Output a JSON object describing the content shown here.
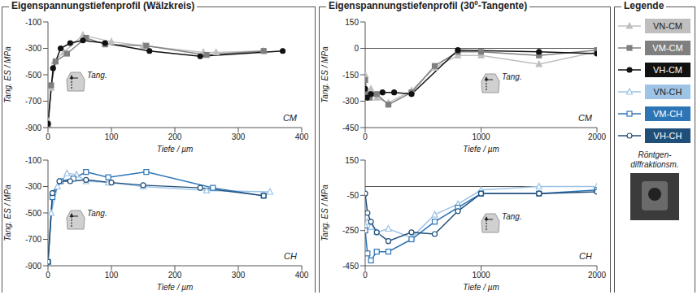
{
  "figure": {
    "group_titles": [
      "Eigenspannungstiefenprofil (Wälzkreis)",
      "Eigenspannungstiefenprofil (30º-Tangente)"
    ],
    "legend_title": "Legende",
    "legend": "right",
    "image_caption": "Röntgen-diffraktionsm."
  },
  "chart_data": [
    {
      "type": "line",
      "x_label": "Tiefe / µm",
      "y_label": "Tang. ES / MPa",
      "annotations": [
        "Tang.",
        "CM"
      ],
      "xlim": [
        0,
        400
      ],
      "xticks": [
        0,
        100,
        200,
        300,
        400
      ],
      "ylim": [
        -900,
        -100
      ],
      "yticks": [
        -100,
        -300,
        -500,
        -700,
        -900
      ],
      "series": [
        {
          "name": "VN-CM",
          "color": "#bfbfbf",
          "marker": "triangle",
          "x": [
            0,
            5,
            10,
            25,
            55,
            100,
            150,
            245,
            265,
            340
          ],
          "values": [
            -850,
            -600,
            -400,
            -330,
            -200,
            -250,
            -280,
            -330,
            -330,
            -320
          ]
        },
        {
          "name": "VM-CM",
          "color": "#7f7f7f",
          "marker": "square",
          "x": [
            0,
            5,
            12,
            30,
            60,
            90,
            155,
            250,
            340
          ],
          "values": [
            -900,
            -580,
            -400,
            -340,
            -220,
            -270,
            -280,
            -350,
            -320
          ]
        },
        {
          "name": "VH-CM",
          "color": "#111111",
          "marker": "circle",
          "x": [
            0,
            8,
            20,
            35,
            55,
            90,
            160,
            240,
            370
          ],
          "values": [
            -870,
            -450,
            -300,
            -260,
            -240,
            -260,
            -320,
            -360,
            -320
          ]
        }
      ]
    },
    {
      "type": "line",
      "x_label": "Tiefe / µm",
      "y_label": "Tang. ES / MPa",
      "annotations": [
        "Tang.",
        "CH"
      ],
      "xlim": [
        0,
        400
      ],
      "xticks": [
        0,
        100,
        200,
        300,
        400
      ],
      "ylim": [
        -900,
        -100
      ],
      "yticks": [
        -100,
        -300,
        -500,
        -700,
        -900
      ],
      "series": [
        {
          "name": "VN-CH",
          "color": "#9dc3e6",
          "marker": "triangle-open",
          "x": [
            0,
            5,
            15,
            30,
            45,
            60,
            95,
            150,
            250,
            350
          ],
          "values": [
            -870,
            -500,
            -300,
            -200,
            -210,
            -260,
            -270,
            -300,
            -330,
            -340
          ]
        },
        {
          "name": "VM-CH",
          "color": "#2e75b6",
          "marker": "square-open",
          "x": [
            0,
            7,
            20,
            40,
            60,
            95,
            155,
            260,
            340
          ],
          "values": [
            -870,
            -380,
            -260,
            -240,
            -190,
            -230,
            -190,
            -310,
            -370
          ]
        },
        {
          "name": "VH-CH",
          "color": "#1f4e79",
          "marker": "circle-open",
          "x": [
            0,
            7,
            18,
            35,
            60,
            100,
            150,
            240,
            340
          ],
          "values": [
            -870,
            -350,
            -260,
            -260,
            -250,
            -270,
            -290,
            -310,
            -370
          ]
        }
      ]
    },
    {
      "type": "line",
      "x_label": "Tiefe / µm",
      "y_label": "Tang. ES / MPa",
      "annotations": [
        "Tang.",
        "CM"
      ],
      "xlim": [
        0,
        2000
      ],
      "xticks": [
        0,
        1000,
        2000
      ],
      "ylim": [
        -450,
        150
      ],
      "yticks": [
        150,
        0,
        -150,
        -300,
        -450
      ],
      "hline": 0,
      "series": [
        {
          "name": "VN-CM",
          "color": "#bfbfbf",
          "marker": "triangle",
          "x": [
            0,
            10,
            25,
            50,
            100,
            200,
            400,
            600,
            800,
            1000,
            1500,
            2000
          ],
          "values": [
            -150,
            -250,
            -270,
            -230,
            -280,
            -310,
            -240,
            -110,
            -40,
            -40,
            -90,
            -20
          ]
        },
        {
          "name": "VM-CM",
          "color": "#7f7f7f",
          "marker": "square",
          "x": [
            0,
            15,
            40,
            100,
            200,
            400,
            600,
            800,
            1000,
            1500,
            2000
          ],
          "values": [
            -180,
            -260,
            -280,
            -260,
            -320,
            -250,
            -100,
            -20,
            -20,
            -40,
            -10
          ]
        },
        {
          "name": "VH-CM",
          "color": "#111111",
          "marker": "circle",
          "x": [
            0,
            15,
            50,
            150,
            250,
            400,
            800,
            1500,
            2000
          ],
          "values": [
            -230,
            -280,
            -260,
            -250,
            -250,
            -260,
            -10,
            -20,
            -30
          ]
        }
      ]
    },
    {
      "type": "line",
      "x_label": "Tiefe / µm",
      "y_label": "Tang. ES / MPa",
      "annotations": [
        "Tang.",
        "CH"
      ],
      "xlim": [
        0,
        2000
      ],
      "xticks": [
        0,
        1000,
        2000
      ],
      "ylim": [
        -450,
        150
      ],
      "yticks": [
        150,
        -50,
        -250,
        -450
      ],
      "hline": 0,
      "series": [
        {
          "name": "VN-CH",
          "color": "#9dc3e6",
          "marker": "triangle-open",
          "x": [
            0,
            20,
            50,
            100,
            200,
            400,
            600,
            800,
            1000,
            1500,
            2000
          ],
          "values": [
            -220,
            -200,
            -230,
            -260,
            -240,
            -290,
            -160,
            -100,
            -20,
            0,
            0
          ]
        },
        {
          "name": "VM-CH",
          "color": "#2e75b6",
          "marker": "square-open",
          "x": [
            0,
            20,
            50,
            100,
            200,
            400,
            600,
            800,
            1000,
            1500,
            2000
          ],
          "values": [
            -250,
            -380,
            -420,
            -370,
            -370,
            -300,
            -200,
            -120,
            -40,
            -40,
            -20
          ]
        },
        {
          "name": "VH-CH",
          "color": "#1f4e79",
          "marker": "circle-open",
          "x": [
            0,
            20,
            50,
            100,
            200,
            400,
            600,
            800,
            1000,
            1500,
            2000
          ],
          "values": [
            -40,
            -150,
            -200,
            -260,
            -310,
            -260,
            -270,
            -140,
            -40,
            -40,
            -30
          ]
        }
      ]
    }
  ]
}
